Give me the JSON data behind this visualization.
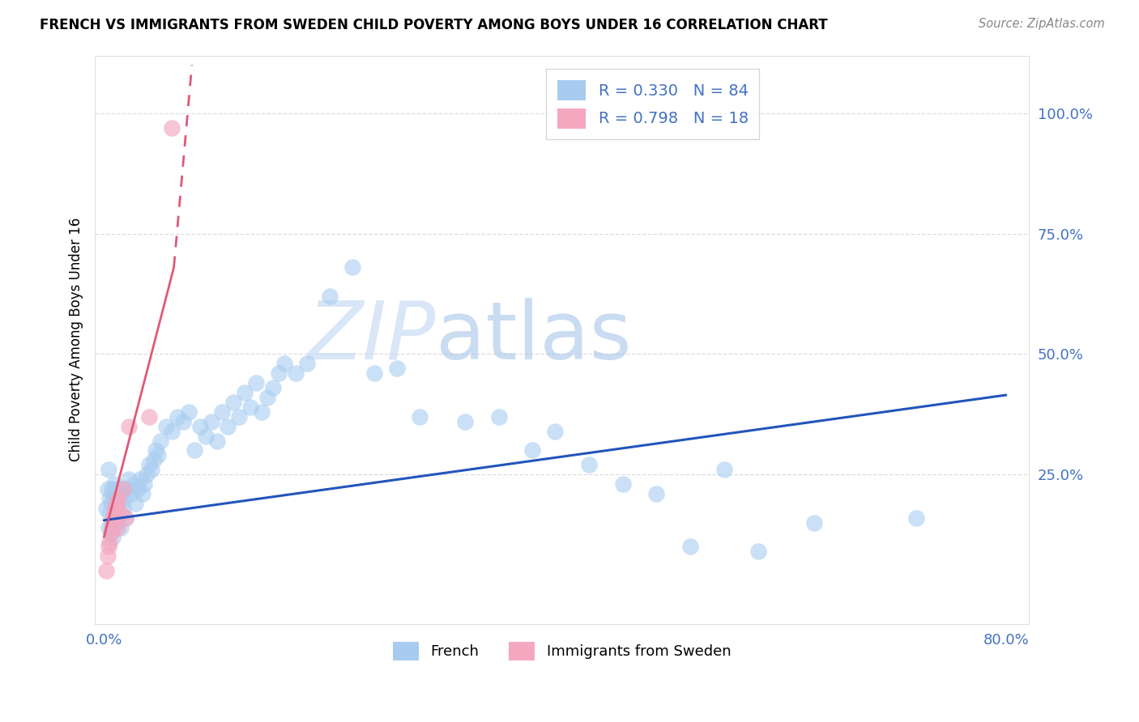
{
  "title": "FRENCH VS IMMIGRANTS FROM SWEDEN CHILD POVERTY AMONG BOYS UNDER 16 CORRELATION CHART",
  "source": "Source: ZipAtlas.com",
  "ylabel": "Child Poverty Among Boys Under 16",
  "xlim": [
    -0.008,
    0.82
  ],
  "ylim": [
    -0.06,
    1.12
  ],
  "french_R": 0.33,
  "french_N": 84,
  "sweden_R": 0.798,
  "sweden_N": 18,
  "french_color": "#A8CCF0",
  "sweden_color": "#F4A8C0",
  "french_line_color": "#2255BB",
  "sweden_line_color": "#E05878",
  "axis_color": "#4472C4",
  "french_x": [
    0.002,
    0.003,
    0.004,
    0.004,
    0.005,
    0.005,
    0.006,
    0.006,
    0.007,
    0.007,
    0.008,
    0.008,
    0.009,
    0.009,
    0.01,
    0.01,
    0.011,
    0.012,
    0.012,
    0.013,
    0.014,
    0.015,
    0.015,
    0.016,
    0.017,
    0.018,
    0.019,
    0.02,
    0.022,
    0.024,
    0.026,
    0.028,
    0.03,
    0.032,
    0.034,
    0.036,
    0.038,
    0.04,
    0.042,
    0.044,
    0.046,
    0.048,
    0.05,
    0.055,
    0.06,
    0.065,
    0.07,
    0.075,
    0.08,
    0.085,
    0.09,
    0.095,
    0.1,
    0.105,
    0.11,
    0.115,
    0.12,
    0.125,
    0.13,
    0.135,
    0.14,
    0.145,
    0.15,
    0.155,
    0.16,
    0.17,
    0.18,
    0.2,
    0.22,
    0.24,
    0.26,
    0.28,
    0.32,
    0.35,
    0.38,
    0.4,
    0.43,
    0.46,
    0.49,
    0.52,
    0.55,
    0.58,
    0.63,
    0.72
  ],
  "french_y": [
    0.18,
    0.22,
    0.14,
    0.26,
    0.17,
    0.2,
    0.13,
    0.19,
    0.15,
    0.22,
    0.12,
    0.21,
    0.16,
    0.23,
    0.14,
    0.2,
    0.18,
    0.15,
    0.22,
    0.19,
    0.17,
    0.21,
    0.14,
    0.22,
    0.18,
    0.2,
    0.16,
    0.22,
    0.24,
    0.21,
    0.23,
    0.19,
    0.22,
    0.24,
    0.21,
    0.23,
    0.25,
    0.27,
    0.26,
    0.28,
    0.3,
    0.29,
    0.32,
    0.35,
    0.34,
    0.37,
    0.36,
    0.38,
    0.3,
    0.35,
    0.33,
    0.36,
    0.32,
    0.38,
    0.35,
    0.4,
    0.37,
    0.42,
    0.39,
    0.44,
    0.38,
    0.41,
    0.43,
    0.46,
    0.48,
    0.46,
    0.48,
    0.62,
    0.68,
    0.46,
    0.47,
    0.37,
    0.36,
    0.37,
    0.3,
    0.34,
    0.27,
    0.23,
    0.21,
    0.1,
    0.26,
    0.09,
    0.15,
    0.16
  ],
  "sweden_x": [
    0.002,
    0.003,
    0.004,
    0.005,
    0.006,
    0.007,
    0.008,
    0.009,
    0.01,
    0.011,
    0.012,
    0.013,
    0.015,
    0.017,
    0.019,
    0.022,
    0.04,
    0.06
  ],
  "sweden_y": [
    0.05,
    0.08,
    0.1,
    0.11,
    0.13,
    0.14,
    0.16,
    0.17,
    0.18,
    0.19,
    0.14,
    0.2,
    0.17,
    0.22,
    0.16,
    0.35,
    0.37,
    0.97
  ],
  "french_trend_x0": 0.0,
  "french_trend_y0": 0.155,
  "french_trend_x1": 0.8,
  "french_trend_y1": 0.415,
  "sweden_trend_solid_x0": 0.0,
  "sweden_trend_solid_y0": 0.12,
  "sweden_trend_solid_x1": 0.062,
  "sweden_trend_solid_y1": 0.68,
  "sweden_trend_dash_x0": 0.062,
  "sweden_trend_dash_y0": 0.68,
  "sweden_trend_dash_x1": 0.078,
  "sweden_trend_dash_y1": 1.1,
  "grid_color": "#DDDDDD",
  "ytick_vals": [
    0.0,
    0.25,
    0.5,
    0.75,
    1.0
  ],
  "ytick_labels": [
    "",
    "25.0%",
    "50.0%",
    "75.0%",
    "100.0%"
  ],
  "xtick_vals": [
    0.0,
    0.8
  ],
  "xtick_labels": [
    "0.0%",
    "80.0%"
  ]
}
